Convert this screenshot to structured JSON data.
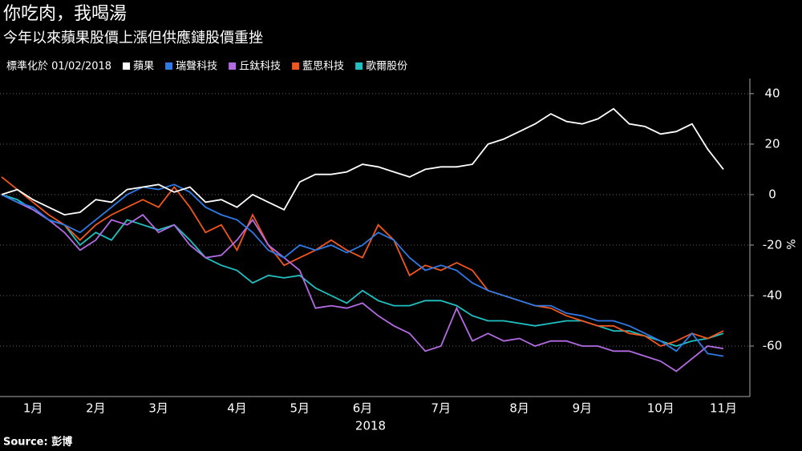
{
  "chart_data": {
    "type": "line",
    "title": "你吃肉，我喝湯",
    "subtitle": "今年以來蘋果股價上漲但供應鏈股價重挫",
    "legend_note": "標準化於 01/02/2018",
    "y_label": "%",
    "x_label": "2018",
    "source": "Source: 彭博",
    "categories": [
      null,
      null,
      "1月",
      null,
      null,
      null,
      "2月",
      null,
      null,
      null,
      "3月",
      null,
      null,
      null,
      null,
      "4月",
      null,
      null,
      null,
      "5月",
      null,
      null,
      null,
      "6月",
      null,
      null,
      null,
      null,
      "7月",
      null,
      null,
      null,
      null,
      "8月",
      null,
      null,
      null,
      "9月",
      null,
      null,
      null,
      null,
      "10月",
      null,
      null,
      null,
      "11月"
    ],
    "series": [
      {
        "name": "蘋果",
        "color": "#ffffff",
        "values": [
          0,
          2,
          -2,
          -5,
          -8,
          -7,
          -2,
          -3,
          2,
          3,
          4,
          1,
          3,
          -3,
          -2,
          -5,
          0,
          -3,
          -6,
          5,
          8,
          8,
          9,
          12,
          11,
          9,
          7,
          10,
          11,
          11,
          12,
          20,
          22,
          25,
          28,
          32,
          29,
          28,
          30,
          34,
          28,
          27,
          24,
          25,
          28,
          18,
          10
        ]
      },
      {
        "name": "瑞聲科技",
        "color": "#2f7ae5",
        "values": [
          0,
          -3,
          -5,
          -10,
          -12,
          -15,
          -10,
          -5,
          0,
          3,
          2,
          4,
          1,
          -5,
          -8,
          -10,
          -15,
          -22,
          -25,
          -20,
          -22,
          -20,
          -23,
          -20,
          -15,
          -18,
          -25,
          -30,
          -28,
          -30,
          -35,
          -38,
          -40,
          -42,
          -44,
          -44,
          -47,
          -48,
          -50,
          -50,
          -52,
          -55,
          -58,
          -62,
          -55,
          -63,
          -64
        ]
      },
      {
        "name": "丘鈦科技",
        "color": "#b36ae2",
        "values": [
          0,
          -3,
          -6,
          -10,
          -15,
          -22,
          -18,
          -10,
          -12,
          -8,
          -15,
          -12,
          -20,
          -25,
          -24,
          -18,
          -10,
          -20,
          -25,
          -30,
          -45,
          -44,
          -45,
          -43,
          -48,
          -52,
          -55,
          -62,
          -60,
          -45,
          -58,
          -55,
          -58,
          -57,
          -60,
          -58,
          -58,
          -60,
          -60,
          -62,
          -62,
          -64,
          -66,
          -70,
          -65,
          -60,
          -61
        ]
      },
      {
        "name": "藍思科技",
        "color": "#f0561d",
        "values": [
          7,
          2,
          -3,
          -8,
          -12,
          -18,
          -12,
          -8,
          -5,
          -2,
          -5,
          3,
          -5,
          -15,
          -12,
          -22,
          -8,
          -20,
          -28,
          -25,
          -22,
          -18,
          -22,
          -25,
          -12,
          -18,
          -32,
          -28,
          -30,
          -27,
          -30,
          -38,
          -40,
          -42,
          -44,
          -45,
          -48,
          -50,
          -52,
          -52,
          -55,
          -56,
          -60,
          -58,
          -55,
          -57,
          -54
        ]
      },
      {
        "name": "歌爾股份",
        "color": "#1fc1c3",
        "values": [
          0,
          -2,
          -6,
          -10,
          -12,
          -20,
          -15,
          -18,
          -10,
          -12,
          -14,
          -12,
          -18,
          -25,
          -28,
          -30,
          -35,
          -32,
          -33,
          -32,
          -37,
          -40,
          -43,
          -38,
          -42,
          -44,
          -44,
          -42,
          -42,
          -44,
          -48,
          -50,
          -50,
          -51,
          -52,
          -51,
          -50,
          -50,
          -52,
          -54,
          -54,
          -56,
          -58,
          -60,
          -58,
          -57,
          -55
        ]
      }
    ],
    "ylim": [
      -80,
      46
    ],
    "yticks": [
      -60,
      -40,
      -20,
      0,
      20,
      40
    ],
    "grid": true
  }
}
